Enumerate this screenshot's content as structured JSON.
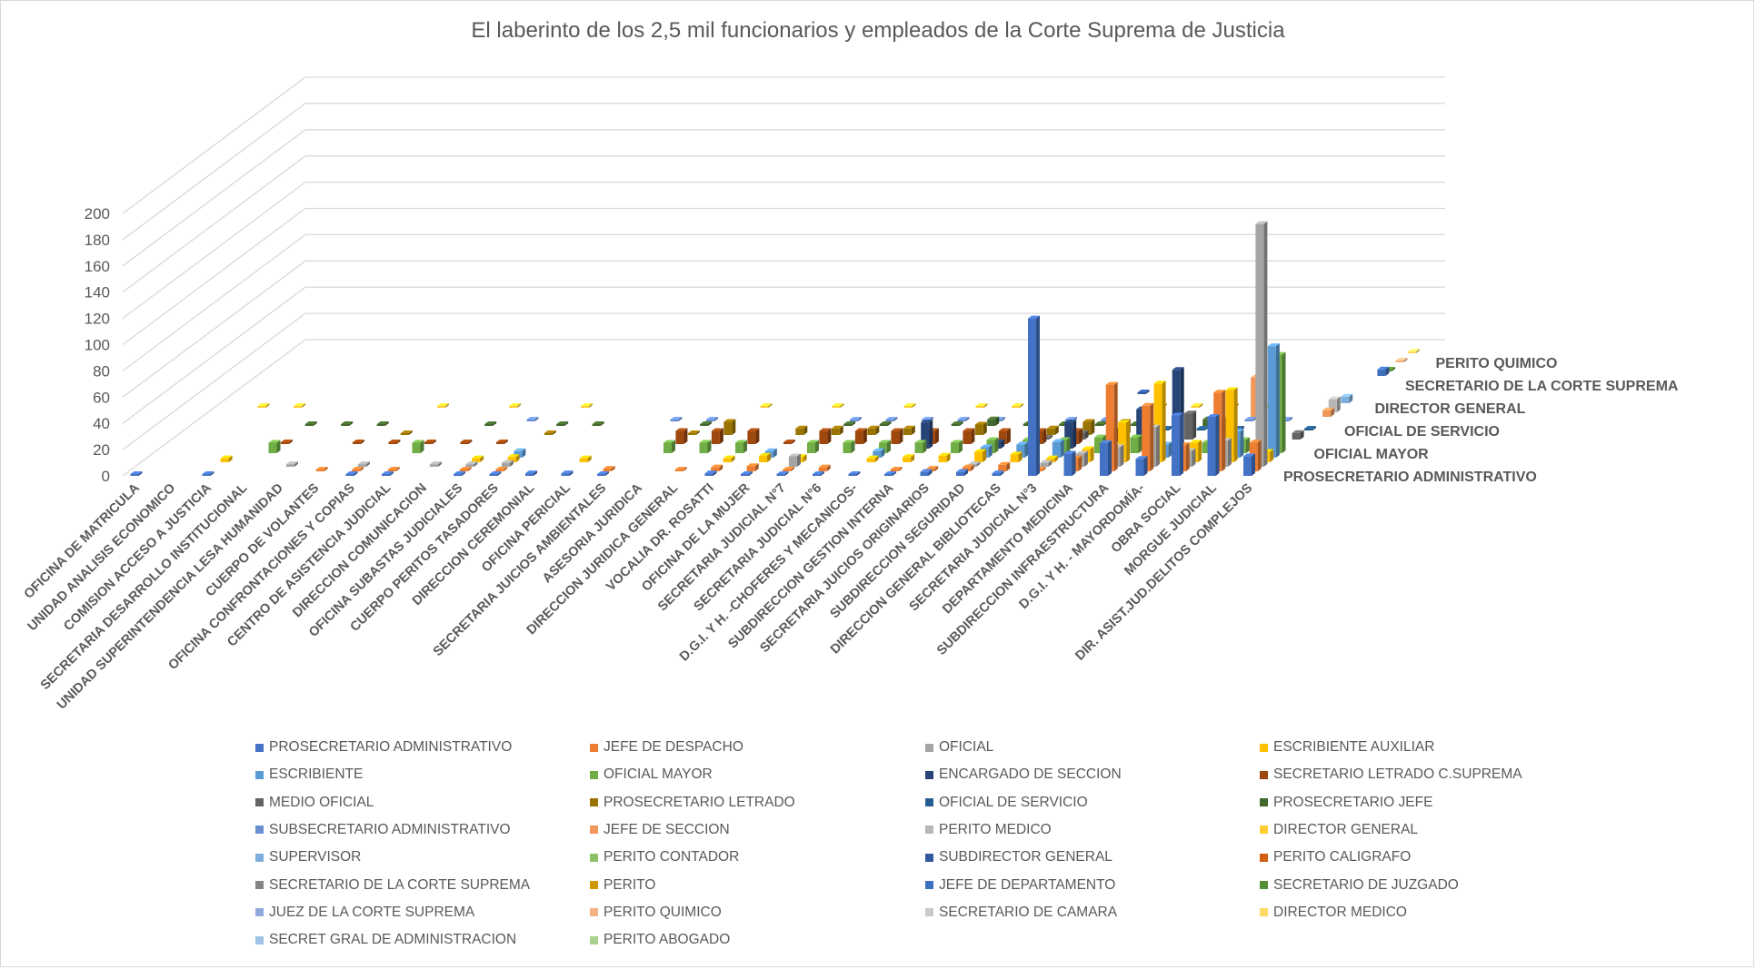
{
  "chart_data": {
    "type": "bar",
    "variant": "3d-column",
    "title": "El laberinto de los 2,5 mil funcionarios y empleados de la Corte Suprema de Justicia",
    "xlabel": "",
    "ylabel": "",
    "ylim": [
      0,
      200
    ],
    "yticks": [
      "0",
      "20",
      "40",
      "60",
      "80",
      "100",
      "120",
      "140",
      "160",
      "180",
      "200"
    ],
    "grid": true,
    "legend_position": "bottom",
    "depth_axis_labels": [
      "PROSECRETARIO ADMINISTRATIVO",
      "OFICIAL MAYOR",
      "OFICIAL DE SERVICIO",
      "DIRECTOR GENERAL",
      "SECRETARIO DE LA CORTE SUPREMA",
      "PERITO QUIMICO"
    ],
    "categories": [
      "OFICINA DE MATRICULA",
      "UNIDAD ANALISIS ECONOMICO",
      "COMISION ACCESO A JUSTICIA",
      "SECRETARIA DESARROLLO INSTITUCIONAL",
      "UNIDAD SUPERINTENDENCIA LESA HUMANIDAD",
      "CUERPO DE VOLANTES",
      "OFICINA CONFRONTACIONES Y COPIAS",
      "CENTRO DE ASISTENCIA JUDICIAL",
      "DIRECCION COMUNICACION",
      "OFICINA SUBASTAS JUDICIALES",
      "CUERPO PERITOS TASADORES",
      "DIRECCION CEREMONIAL",
      "OFICINA PERICIAL",
      "SECRETARIA JUICIOS AMBIENTALES",
      "ASESORIA JURIDICA",
      "DIRECCION JURIDICA GENERAL",
      "VOCALIA DR. ROSATTI",
      "OFICINA DE LA MUJER",
      "SECRETARIA JUDICIAL N°7",
      "SECRETARIA JUDICIAL N°6",
      "D.G.I. Y H. -CHOFERES Y MECANICOS-",
      "SUBDIRECCION GESTION INTERNA",
      "SECRETARIA JUICIOS ORIGINARIOS",
      "SUBDIRECCION SEGURIDAD",
      "DIRECCION GENERAL BIBLIOTECAS",
      "SECRETARIA JUDICIAL N°3",
      "DEPARTAMENTO MEDICINA",
      "SUBDIRECCION INFRAESTRUCTURA",
      "D.G.I. Y H. - MAYORDOMÍA-",
      "OBRA SOCIAL",
      "MORGUE JUDICIAL",
      "DIR. ASIST.JUD.DELITOS COMPLEJOS"
    ],
    "series": [
      {
        "name": "PROSECRETARIO ADMINISTRATIVO",
        "color": "#4472C4",
        "values": [
          0,
          null,
          0,
          null,
          null,
          null,
          0,
          0,
          null,
          0,
          0,
          2,
          2,
          0,
          null,
          null,
          2,
          0,
          0,
          0,
          0,
          0,
          3,
          3,
          2,
          120,
          17,
          25,
          13,
          46,
          45,
          15
        ]
      },
      {
        "name": "JEFE DE DESPACHO",
        "color": "#ED7D31",
        "values": [
          null,
          null,
          null,
          null,
          null,
          1,
          0,
          1,
          null,
          1,
          0,
          null,
          null,
          2,
          null,
          0,
          3,
          4,
          0,
          3,
          null,
          1,
          2,
          3,
          5,
          0,
          10,
          66,
          50,
          20,
          60,
          22
        ]
      },
      {
        "name": "OFICIAL",
        "color": "#A5A5A5",
        "values": [
          null,
          null,
          null,
          null,
          2,
          null,
          2,
          null,
          2,
          2,
          3,
          null,
          null,
          null,
          null,
          null,
          null,
          null,
          8,
          null,
          null,
          null,
          null,
          2,
          null,
          3,
          10,
          15,
          30,
          12,
          20,
          185
        ]
      },
      {
        "name": "ESCRIBIENTE AUXILIAR",
        "color": "#FFC000",
        "values": [
          null,
          null,
          3,
          null,
          null,
          null,
          null,
          null,
          null,
          3,
          4,
          null,
          3,
          null,
          null,
          null,
          3,
          5,
          4,
          null,
          3,
          4,
          5,
          8,
          6,
          3,
          10,
          30,
          60,
          15,
          55,
          8
        ]
      },
      {
        "name": "ESCRIBIENTE",
        "color": "#5B9BD5",
        "values": [
          null,
          null,
          null,
          null,
          null,
          null,
          null,
          null,
          null,
          null,
          5,
          null,
          null,
          null,
          null,
          null,
          null,
          5,
          null,
          null,
          5,
          null,
          null,
          8,
          10,
          12,
          null,
          null,
          10,
          null,
          20,
          85
        ]
      },
      {
        "name": "OFICIAL MAYOR",
        "color": "#70AD47",
        "values": [
          null,
          null,
          null,
          8,
          null,
          null,
          null,
          8,
          null,
          null,
          null,
          null,
          null,
          null,
          8,
          8,
          8,
          null,
          8,
          8,
          8,
          8,
          8,
          10,
          10,
          10,
          12,
          12,
          null,
          8,
          10,
          75
        ]
      },
      {
        "name": "ENCARGADO DE SECCION",
        "color": "#264478",
        "values": [
          null,
          null,
          null,
          null,
          null,
          null,
          null,
          null,
          null,
          null,
          null,
          null,
          null,
          null,
          null,
          null,
          null,
          null,
          null,
          null,
          null,
          20,
          null,
          5,
          null,
          20,
          null,
          30,
          60,
          null,
          null,
          null
        ]
      },
      {
        "name": "SECRETARIO LETRADO C.SUPREMA",
        "color": "#9E480E",
        "values": [
          null,
          null,
          null,
          0,
          null,
          0,
          0,
          0,
          0,
          0,
          null,
          null,
          null,
          null,
          10,
          10,
          10,
          0,
          10,
          10,
          10,
          10,
          10,
          10,
          10,
          10,
          10,
          null,
          null,
          null,
          null,
          null
        ]
      },
      {
        "name": "MEDIO OFICIAL",
        "color": "#636363",
        "values": [
          null,
          null,
          null,
          null,
          null,
          null,
          null,
          null,
          null,
          null,
          null,
          null,
          null,
          null,
          null,
          null,
          null,
          null,
          null,
          null,
          null,
          null,
          null,
          null,
          0,
          5,
          0,
          10,
          20,
          15,
          null,
          5
        ]
      },
      {
        "name": "PROSECRETARIO LETRADO",
        "color": "#997300",
        "values": [
          null,
          null,
          null,
          null,
          null,
          null,
          0,
          null,
          null,
          null,
          0,
          null,
          null,
          null,
          0,
          10,
          null,
          5,
          5,
          5,
          5,
          null,
          8,
          null,
          5,
          10,
          10,
          null,
          null,
          null,
          null,
          null
        ]
      },
      {
        "name": "OFICIAL DE SERVICIO",
        "color": "#255E91",
        "values": [
          null,
          null,
          null,
          null,
          null,
          null,
          null,
          null,
          null,
          null,
          null,
          null,
          null,
          null,
          null,
          null,
          null,
          null,
          null,
          null,
          null,
          null,
          null,
          null,
          null,
          null,
          null,
          0,
          0,
          0,
          5,
          0
        ]
      },
      {
        "name": "PROSECRETARIO JEFE",
        "color": "#43682B",
        "values": [
          null,
          null,
          null,
          0,
          0,
          0,
          null,
          null,
          0,
          null,
          0,
          0,
          null,
          null,
          0,
          null,
          null,
          null,
          0,
          0,
          null,
          0,
          5,
          0,
          0,
          0,
          0,
          null,
          5,
          null,
          null,
          null
        ]
      },
      {
        "name": "SUBSECRETARIO ADMINISTRATIVO",
        "color": "#698ED0",
        "values": [
          null,
          null,
          null,
          null,
          null,
          null,
          null,
          null,
          null,
          0,
          null,
          null,
          null,
          0,
          0,
          null,
          null,
          null,
          0,
          0,
          0,
          0,
          0,
          null,
          0,
          0,
          null,
          null,
          null,
          0,
          0,
          null
        ]
      },
      {
        "name": "JEFE DE SECCION",
        "color": "#F1975A",
        "values": [
          null,
          null,
          null,
          null,
          null,
          null,
          null,
          null,
          null,
          null,
          null,
          null,
          null,
          null,
          null,
          null,
          null,
          null,
          null,
          null,
          null,
          null,
          null,
          null,
          null,
          null,
          null,
          null,
          null,
          30,
          null,
          5
        ]
      },
      {
        "name": "PERITO MEDICO",
        "color": "#B7B7B7",
        "values": [
          null,
          null,
          null,
          null,
          null,
          null,
          null,
          null,
          null,
          null,
          null,
          null,
          null,
          null,
          null,
          null,
          null,
          null,
          null,
          null,
          null,
          null,
          null,
          null,
          null,
          null,
          null,
          null,
          null,
          null,
          null,
          10
        ]
      },
      {
        "name": "DIRECTOR GENERAL",
        "color": "#FFCD33",
        "values": [
          null,
          0,
          0,
          null,
          null,
          null,
          0,
          null,
          0,
          null,
          0,
          null,
          null,
          null,
          null,
          0,
          null,
          0,
          null,
          0,
          null,
          0,
          0,
          null,
          null,
          null,
          0,
          0,
          0,
          0,
          null,
          null
        ]
      },
      {
        "name": "SUPERVISOR",
        "color": "#7CAFDD",
        "values": [
          null,
          null,
          null,
          null,
          null,
          null,
          null,
          null,
          null,
          null,
          null,
          null,
          null,
          null,
          null,
          null,
          null,
          null,
          null,
          null,
          null,
          null,
          null,
          null,
          null,
          null,
          null,
          null,
          null,
          null,
          null,
          5
        ]
      },
      {
        "name": "PERITO CONTADOR",
        "color": "#8CC168",
        "values": [
          null,
          null,
          null,
          null,
          null,
          null,
          null,
          null,
          null,
          null,
          null,
          null,
          null,
          null,
          null,
          null,
          null,
          null,
          null,
          null,
          null,
          null,
          null,
          null,
          null,
          null,
          null,
          null,
          null,
          null,
          null,
          null
        ]
      },
      {
        "name": "SUBDIRECTOR GENERAL",
        "color": "#335AA1",
        "values": [
          null,
          null,
          null,
          null,
          null,
          null,
          null,
          null,
          null,
          null,
          null,
          null,
          null,
          null,
          null,
          null,
          null,
          null,
          null,
          null,
          null,
          null,
          null,
          null,
          null,
          0,
          null,
          null,
          null,
          null,
          null,
          null
        ]
      },
      {
        "name": "PERITO CALIGRAFO",
        "color": "#D26012",
        "values": [
          null,
          null,
          null,
          null,
          null,
          null,
          null,
          null,
          null,
          null,
          null,
          null,
          null,
          null,
          null,
          null,
          null,
          null,
          null,
          null,
          null,
          null,
          null,
          null,
          null,
          null,
          null,
          null,
          null,
          null,
          null,
          null
        ]
      },
      {
        "name": "SECRETARIO DE LA CORTE SUPREMA",
        "color": "#848484",
        "values": [
          null,
          null,
          null,
          null,
          null,
          null,
          null,
          null,
          null,
          null,
          null,
          null,
          null,
          null,
          null,
          null,
          null,
          null,
          null,
          null,
          null,
          null,
          null,
          null,
          null,
          null,
          null,
          null,
          null,
          null,
          null,
          null
        ]
      },
      {
        "name": "PERITO",
        "color": "#CC9A00",
        "values": [
          null,
          null,
          null,
          null,
          null,
          null,
          null,
          null,
          null,
          null,
          null,
          null,
          null,
          null,
          null,
          null,
          null,
          null,
          null,
          null,
          null,
          null,
          null,
          null,
          null,
          null,
          null,
          null,
          null,
          null,
          null,
          null
        ]
      },
      {
        "name": "JEFE DE DEPARTAMENTO",
        "color": "#3F6FBF",
        "values": [
          null,
          null,
          null,
          null,
          null,
          null,
          null,
          null,
          null,
          null,
          null,
          null,
          null,
          null,
          null,
          null,
          null,
          null,
          null,
          null,
          null,
          null,
          null,
          null,
          null,
          null,
          null,
          null,
          null,
          null,
          null,
          5
        ]
      },
      {
        "name": "SECRETARIO DE JUZGADO",
        "color": "#568F33",
        "values": [
          null,
          null,
          null,
          null,
          null,
          null,
          null,
          null,
          null,
          null,
          null,
          null,
          null,
          null,
          null,
          null,
          null,
          null,
          null,
          null,
          null,
          null,
          null,
          null,
          null,
          null,
          null,
          null,
          null,
          null,
          null,
          0
        ]
      },
      {
        "name": "JUEZ DE LA CORTE SUPREMA",
        "color": "#8FAADC",
        "values": [
          null,
          null,
          null,
          null,
          null,
          null,
          null,
          null,
          null,
          null,
          null,
          null,
          null,
          null,
          null,
          null,
          null,
          null,
          null,
          null,
          null,
          null,
          null,
          null,
          null,
          null,
          null,
          null,
          null,
          null,
          null,
          null
        ]
      },
      {
        "name": "PERITO QUIMICO",
        "color": "#F4B183",
        "values": [
          null,
          null,
          null,
          null,
          null,
          null,
          null,
          null,
          null,
          null,
          null,
          null,
          null,
          null,
          null,
          null,
          null,
          null,
          null,
          null,
          null,
          null,
          null,
          null,
          null,
          null,
          null,
          null,
          null,
          null,
          null,
          0
        ]
      },
      {
        "name": "SECRETARIO DE CAMARA",
        "color": "#C9C9C9",
        "values": [
          null,
          null,
          null,
          null,
          null,
          null,
          null,
          null,
          null,
          null,
          null,
          null,
          null,
          null,
          null,
          null,
          null,
          null,
          null,
          null,
          null,
          null,
          null,
          null,
          null,
          null,
          null,
          null,
          null,
          null,
          null,
          null
        ]
      },
      {
        "name": "DIRECTOR MEDICO",
        "color": "#FFD966",
        "values": [
          null,
          null,
          null,
          null,
          null,
          null,
          null,
          null,
          null,
          null,
          null,
          null,
          null,
          null,
          null,
          null,
          null,
          null,
          null,
          null,
          null,
          null,
          null,
          null,
          null,
          null,
          null,
          null,
          null,
          null,
          null,
          0
        ]
      },
      {
        "name": "SECRET GRAL DE ADMINISTRACION",
        "color": "#9DC3E6",
        "values": [
          null,
          null,
          null,
          null,
          null,
          null,
          null,
          null,
          null,
          null,
          null,
          null,
          null,
          null,
          null,
          null,
          null,
          null,
          null,
          null,
          null,
          null,
          null,
          null,
          null,
          null,
          null,
          null,
          null,
          null,
          null,
          null
        ]
      },
      {
        "name": "PERITO ABOGADO",
        "color": "#A9D18E",
        "values": [
          null,
          null,
          null,
          null,
          null,
          null,
          null,
          null,
          null,
          null,
          null,
          null,
          null,
          null,
          null,
          null,
          null,
          null,
          null,
          null,
          null,
          null,
          null,
          null,
          null,
          null,
          null,
          null,
          null,
          null,
          null,
          null
        ]
      }
    ]
  }
}
